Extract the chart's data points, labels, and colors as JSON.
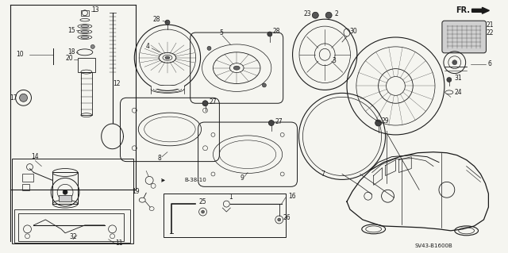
{
  "bg_color": "#f5f5f0",
  "line_color": "#1a1a1a",
  "diagram_ref": "SV43-B1600B",
  "label_fs": 6.5,
  "small_fs": 5.5
}
